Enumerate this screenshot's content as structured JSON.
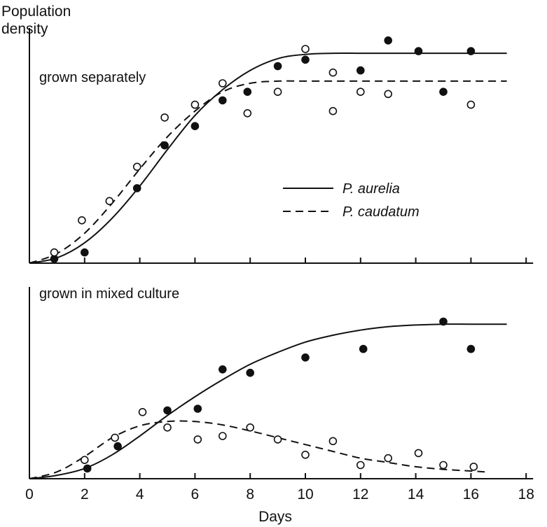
{
  "chart_data": {
    "type": "line",
    "ylabel": [
      "Population",
      "density"
    ],
    "xlabel": "Days",
    "xlim": [
      0,
      18
    ],
    "xticks": [
      0,
      2,
      4,
      6,
      8,
      10,
      12,
      14,
      16,
      18
    ],
    "grid": false,
    "legend_position": "center-right",
    "series_styles": [
      {
        "name": "P. aurelia",
        "line": "solid",
        "marker": "filled-circle"
      },
      {
        "name": "P. caudatum",
        "line": "dashed",
        "marker": "open-circle"
      }
    ],
    "panels": [
      {
        "title": "grown separately",
        "ylim": [
          0,
          1
        ],
        "series": [
          {
            "name": "P. aurelia",
            "curve": [
              [
                0,
                0
              ],
              [
                1,
                0.025
              ],
              [
                2,
                0.095
              ],
              [
                3,
                0.21
              ],
              [
                4,
                0.36
              ],
              [
                5,
                0.53
              ],
              [
                6,
                0.69
              ],
              [
                7,
                0.81
              ],
              [
                8,
                0.9
              ],
              [
                9,
                0.955
              ],
              [
                10,
                0.975
              ],
              [
                11,
                0.98
              ],
              [
                12,
                0.98
              ],
              [
                13,
                0.98
              ],
              [
                14,
                0.98
              ],
              [
                15,
                0.98
              ],
              [
                16,
                0.98
              ],
              [
                17.3,
                0.98
              ]
            ],
            "points": [
              [
                0.9,
                0.02
              ],
              [
                2.0,
                0.05
              ],
              [
                3.9,
                0.35
              ],
              [
                4.9,
                0.55
              ],
              [
                6.0,
                0.64
              ],
              [
                7.0,
                0.76
              ],
              [
                7.9,
                0.8
              ],
              [
                9.0,
                0.92
              ],
              [
                10.0,
                0.95
              ],
              [
                12.0,
                0.9
              ],
              [
                13.0,
                1.04
              ],
              [
                14.1,
                0.99
              ],
              [
                15.0,
                0.8
              ],
              [
                16.0,
                0.99
              ]
            ]
          },
          {
            "name": "P. caudatum",
            "curve": [
              [
                0,
                0
              ],
              [
                1,
                0.045
              ],
              [
                2,
                0.14
              ],
              [
                3,
                0.28
              ],
              [
                4,
                0.44
              ],
              [
                5,
                0.59
              ],
              [
                6,
                0.71
              ],
              [
                7,
                0.8
              ],
              [
                8,
                0.84
              ],
              [
                9,
                0.85
              ],
              [
                10,
                0.85
              ],
              [
                11,
                0.85
              ],
              [
                12,
                0.85
              ],
              [
                13,
                0.85
              ],
              [
                14,
                0.85
              ],
              [
                15,
                0.85
              ],
              [
                16,
                0.85
              ],
              [
                17.3,
                0.85
              ]
            ],
            "points": [
              [
                0.9,
                0.05
              ],
              [
                1.9,
                0.2
              ],
              [
                2.9,
                0.29
              ],
              [
                3.9,
                0.45
              ],
              [
                4.9,
                0.68
              ],
              [
                6.0,
                0.74
              ],
              [
                7.0,
                0.84
              ],
              [
                7.9,
                0.7
              ],
              [
                9.0,
                0.8
              ],
              [
                10.0,
                1.0
              ],
              [
                11.0,
                0.89
              ],
              [
                11.0,
                0.71
              ],
              [
                12.0,
                0.8
              ],
              [
                13.0,
                0.79
              ],
              [
                16.0,
                0.74
              ]
            ]
          }
        ]
      },
      {
        "title": "grown in mixed culture",
        "ylim": [
          0,
          1
        ],
        "series": [
          {
            "name": "P. aurelia",
            "curve": [
              [
                0,
                0
              ],
              [
                1,
                0.02
              ],
              [
                2,
                0.06
              ],
              [
                3,
                0.14
              ],
              [
                4,
                0.25
              ],
              [
                5,
                0.37
              ],
              [
                6,
                0.48
              ],
              [
                7,
                0.58
              ],
              [
                8,
                0.67
              ],
              [
                9,
                0.74
              ],
              [
                10,
                0.8
              ],
              [
                11,
                0.84
              ],
              [
                12,
                0.87
              ],
              [
                13,
                0.89
              ],
              [
                14,
                0.9
              ],
              [
                15,
                0.905
              ],
              [
                16,
                0.905
              ],
              [
                17.3,
                0.905
              ]
            ],
            "points": [
              [
                2.1,
                0.06
              ],
              [
                3.2,
                0.19
              ],
              [
                5.0,
                0.4
              ],
              [
                6.1,
                0.41
              ],
              [
                7.0,
                0.64
              ],
              [
                8.0,
                0.62
              ],
              [
                10.0,
                0.71
              ],
              [
                12.1,
                0.76
              ],
              [
                15.0,
                0.92
              ],
              [
                16.0,
                0.76
              ]
            ]
          },
          {
            "name": "P. caudatum",
            "curve": [
              [
                0,
                0
              ],
              [
                1,
                0.04
              ],
              [
                2,
                0.13
              ],
              [
                3,
                0.24
              ],
              [
                4,
                0.31
              ],
              [
                5,
                0.335
              ],
              [
                6,
                0.335
              ],
              [
                7,
                0.315
              ],
              [
                8,
                0.28
              ],
              [
                9,
                0.24
              ],
              [
                10,
                0.2
              ],
              [
                11,
                0.16
              ],
              [
                12,
                0.12
              ],
              [
                13,
                0.095
              ],
              [
                14,
                0.07
              ],
              [
                15,
                0.055
              ],
              [
                16,
                0.045
              ],
              [
                16.5,
                0.04
              ]
            ],
            "points": [
              [
                2.0,
                0.11
              ],
              [
                3.1,
                0.24
              ],
              [
                4.1,
                0.39
              ],
              [
                5.0,
                0.3
              ],
              [
                6.1,
                0.23
              ],
              [
                7.0,
                0.25
              ],
              [
                8.0,
                0.3
              ],
              [
                9.0,
                0.23
              ],
              [
                10.0,
                0.14
              ],
              [
                11.0,
                0.22
              ],
              [
                12.0,
                0.08
              ],
              [
                13.0,
                0.12
              ],
              [
                14.1,
                0.15
              ],
              [
                15.0,
                0.08
              ],
              [
                16.1,
                0.07
              ]
            ]
          }
        ]
      }
    ]
  }
}
